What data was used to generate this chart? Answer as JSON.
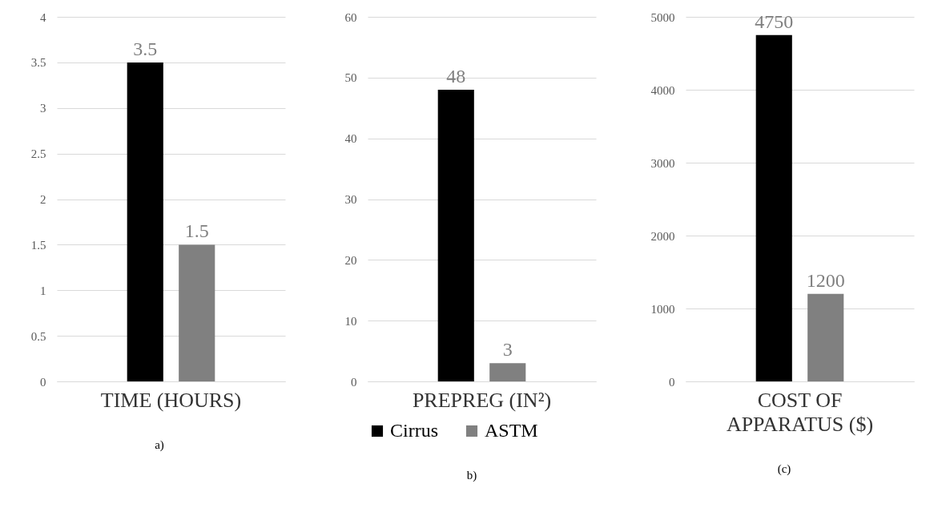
{
  "chart_data": [
    {
      "type": "bar",
      "categories": [
        "TIME (HOURS)"
      ],
      "series": [
        {
          "color": "#000000",
          "values": [
            3.5
          ]
        },
        {
          "color": "#808080",
          "values": [
            1.5
          ]
        }
      ],
      "ylim": [
        0,
        4
      ],
      "yticks": [
        0,
        0.5,
        1,
        1.5,
        2,
        2.5,
        3,
        3.5,
        4
      ],
      "grid": "y",
      "data_labels": true,
      "legend": false,
      "annotations": [
        "a)"
      ]
    },
    {
      "type": "bar",
      "categories": [
        "PREPREG (IN²)"
      ],
      "series": [
        {
          "name": "Cirrus",
          "color": "#000000",
          "values": [
            48
          ]
        },
        {
          "name": "ASTM",
          "color": "#808080",
          "values": [
            3
          ]
        }
      ],
      "ylim": [
        0,
        60
      ],
      "yticks": [
        0,
        10,
        20,
        30,
        40,
        50,
        60
      ],
      "grid": "y",
      "data_labels": true,
      "legend": "bottom",
      "annotations": [
        "b)"
      ]
    },
    {
      "type": "bar",
      "categories": [
        "COST OF APPARATUS ($)"
      ],
      "series": [
        {
          "color": "#000000",
          "values": [
            4750
          ]
        },
        {
          "color": "#808080",
          "values": [
            1200
          ]
        }
      ],
      "ylim": [
        0,
        5000
      ],
      "yticks": [
        0,
        1000,
        2000,
        3000,
        4000,
        5000
      ],
      "grid": "y",
      "data_labels": true,
      "legend": false,
      "annotations": [
        "(c)"
      ]
    }
  ]
}
